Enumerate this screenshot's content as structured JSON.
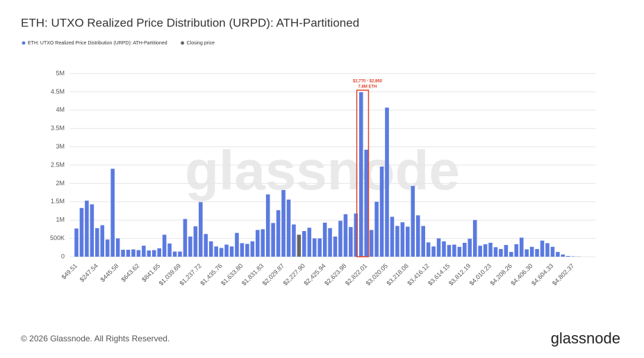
{
  "chart_data": {
    "type": "bar",
    "title": "ETH: UTXO Realized Price Distribution (URPD): ATH-Partitioned",
    "watermark": "glassnode",
    "annotations": [
      "$2,770 - $2,860",
      "7.8M ETH"
    ],
    "footer": "© 2026 Glassnode. All Rights Reserved.",
    "brand": "glassnode",
    "categories": [
      "$49.51",
      null,
      null,
      null,
      "$247.54",
      null,
      null,
      null,
      "$445.58",
      null,
      null,
      null,
      "$643.62",
      null,
      null,
      null,
      "$841.65",
      null,
      null,
      null,
      "$1,039.69",
      null,
      null,
      null,
      "$1,237.72",
      null,
      null,
      null,
      "$1,435.76",
      null,
      null,
      null,
      "$1,633.80",
      null,
      null,
      null,
      "$1,831.83",
      null,
      null,
      null,
      "$2,029.87",
      null,
      null,
      null,
      "$2,227.90",
      null,
      null,
      null,
      "$2,425.94",
      null,
      null,
      null,
      "$2,623.98",
      null,
      null,
      null,
      "$2,822.01",
      null,
      null,
      null,
      "$3,020.05",
      null,
      null,
      null,
      "$3,218.08",
      null,
      null,
      null,
      "$3,416.12",
      null,
      null,
      null,
      "$3,614.15",
      null,
      null,
      null,
      "$3,812.19",
      null,
      null,
      null,
      "$4,010.23",
      null,
      null,
      null,
      "$4,208.26",
      null,
      null,
      null,
      "$4,406.30",
      null,
      null,
      null,
      "$4,604.33",
      null,
      null,
      null,
      "$4,802.37",
      null
    ],
    "series": [
      {
        "name": "ETH: UTXO Realized Price Distribution (URPD): ATH-Partitioned",
        "color": "#5b7ae0",
        "values": [
          770000,
          1330000,
          1530000,
          1430000,
          780000,
          860000,
          470000,
          2400000,
          500000,
          190000,
          190000,
          200000,
          180000,
          300000,
          170000,
          180000,
          230000,
          600000,
          360000,
          140000,
          140000,
          1030000,
          550000,
          830000,
          1490000,
          620000,
          420000,
          280000,
          240000,
          330000,
          280000,
          650000,
          370000,
          350000,
          420000,
          730000,
          750000,
          1700000,
          920000,
          1270000,
          1820000,
          1560000,
          880000,
          null,
          700000,
          790000,
          500000,
          500000,
          930000,
          780000,
          550000,
          980000,
          1160000,
          810000,
          1180000,
          4490000,
          2920000,
          730000,
          1500000,
          2460000,
          4070000,
          1090000,
          840000,
          940000,
          820000,
          1930000,
          1130000,
          840000,
          390000,
          280000,
          500000,
          420000,
          320000,
          330000,
          270000,
          380000,
          490000,
          1000000,
          300000,
          340000,
          380000,
          260000,
          210000,
          320000,
          130000,
          340000,
          520000,
          200000,
          270000,
          210000,
          440000,
          370000,
          270000,
          130000,
          60000,
          20000,
          10000,
          5000
        ]
      },
      {
        "name": "Closing price",
        "color": "#666666",
        "values": [
          null,
          null,
          null,
          null,
          null,
          null,
          null,
          null,
          null,
          null,
          null,
          null,
          null,
          null,
          null,
          null,
          null,
          null,
          null,
          null,
          null,
          null,
          null,
          null,
          null,
          null,
          null,
          null,
          null,
          null,
          null,
          null,
          null,
          null,
          null,
          null,
          null,
          null,
          null,
          null,
          null,
          null,
          null,
          600000,
          null,
          null,
          null,
          null,
          null,
          null,
          null,
          null,
          null,
          null,
          null,
          null,
          null,
          null,
          null,
          null,
          null,
          null,
          null,
          null,
          null,
          null,
          null,
          null,
          null,
          null,
          null,
          null,
          null,
          null,
          null,
          null,
          null,
          null,
          null,
          null,
          null,
          null,
          null,
          null,
          null,
          null,
          null,
          null,
          null,
          null,
          null,
          null,
          null,
          null,
          null,
          null,
          null,
          null
        ]
      }
    ],
    "ylim": [
      0,
      5000000
    ],
    "yticks": [
      0,
      {
        "value": 500000,
        "label": "500K"
      },
      {
        "value": 1000000,
        "label": "1M"
      },
      {
        "value": 1500000,
        "label": "1.5M"
      },
      {
        "value": 2000000,
        "label": "2M"
      },
      {
        "value": 2500000,
        "label": "2.5M"
      },
      {
        "value": 3000000,
        "label": "3M"
      },
      {
        "value": 3500000,
        "label": "3.5M"
      },
      {
        "value": 4000000,
        "label": "4M"
      },
      {
        "value": 4500000,
        "label": "4.5M"
      },
      {
        "value": 5000000,
        "label": "5M"
      }
    ],
    "grid": true
  }
}
